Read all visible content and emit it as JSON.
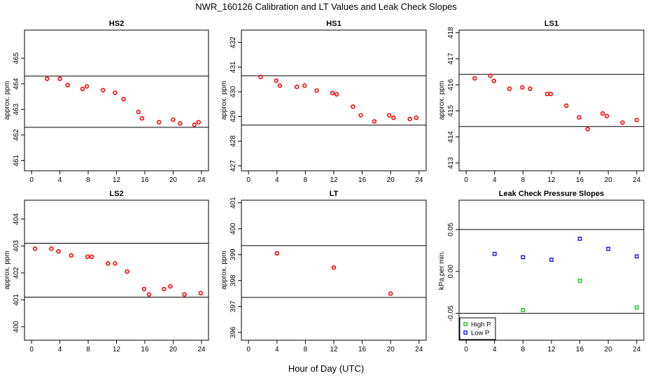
{
  "figure": {
    "title": "NWR_160126  Calibration and LT Values and Leak Check Slopes",
    "xlabel": "Hour of Day (UTC)"
  },
  "chart_data": [
    {
      "type": "scatter",
      "title": "HS2",
      "ylabel": "approx. ppm",
      "xlim": [
        -1,
        25
      ],
      "ylim": [
        460.6,
        466.1
      ],
      "xticks": [
        0,
        4,
        8,
        12,
        16,
        20,
        24
      ],
      "xtick_labels": [
        "0",
        "4",
        "8",
        "12",
        "16",
        "20",
        "24"
      ],
      "yticks": [
        461,
        462,
        463,
        464,
        465
      ],
      "ytick_labels": [
        "461",
        "462",
        "463",
        "464",
        "465"
      ],
      "hlines": [
        464.3,
        462.3
      ],
      "series": [
        {
          "name": "HS2",
          "color": "#ff0000",
          "x": [
            2.2,
            4.0,
            5.1,
            7.2,
            7.8,
            10.1,
            11.8,
            13.0,
            15.1,
            15.6,
            18.0,
            20.0,
            21.0,
            23.0,
            23.6
          ],
          "y": [
            464.2,
            464.2,
            463.95,
            463.8,
            463.9,
            463.75,
            463.65,
            463.4,
            462.9,
            462.65,
            462.5,
            462.6,
            462.45,
            462.4,
            462.5
          ]
        }
      ]
    },
    {
      "type": "scatter",
      "title": "HS1",
      "ylabel": "approx. ppm",
      "xlim": [
        -1,
        25
      ],
      "ylim": [
        426.8,
        432.5
      ],
      "xticks": [
        0,
        4,
        8,
        12,
        16,
        20,
        24
      ],
      "xtick_labels": [
        "0",
        "4",
        "8",
        "12",
        "16",
        "20",
        "24"
      ],
      "yticks": [
        427,
        428,
        429,
        430,
        431,
        432
      ],
      "ytick_labels": [
        "427",
        "428",
        "429",
        "430",
        "431",
        "432"
      ],
      "hlines": [
        430.65,
        428.65
      ],
      "series": [
        {
          "name": "HS1",
          "color": "#ff0000",
          "x": [
            1.7,
            3.9,
            4.4,
            6.8,
            7.9,
            9.6,
            11.8,
            12.4,
            14.7,
            15.8,
            17.7,
            19.8,
            20.4,
            22.7,
            23.6
          ],
          "y": [
            430.6,
            430.45,
            430.25,
            430.2,
            430.25,
            430.05,
            429.95,
            429.9,
            429.4,
            429.05,
            428.8,
            429.05,
            428.95,
            428.9,
            428.95
          ]
        }
      ]
    },
    {
      "type": "scatter",
      "title": "LS1",
      "ylabel": "approx. ppm",
      "xlim": [
        -1,
        25
      ],
      "ylim": [
        412.7,
        418.1
      ],
      "xticks": [
        0,
        4,
        8,
        12,
        16,
        20,
        24
      ],
      "xtick_labels": [
        "0",
        "4",
        "8",
        "12",
        "16",
        "20",
        "24"
      ],
      "yticks": [
        413,
        414,
        415,
        416,
        417,
        418
      ],
      "ytick_labels": [
        "413",
        "414",
        "415",
        "416",
        "417",
        "418"
      ],
      "hlines": [
        416.4,
        414.4
      ],
      "series": [
        {
          "name": "LS1",
          "color": "#ff0000",
          "x": [
            1.2,
            3.4,
            3.9,
            6.1,
            7.9,
            9.0,
            11.4,
            11.9,
            14.1,
            15.9,
            17.1,
            19.2,
            19.8,
            22.0,
            24.0
          ],
          "y": [
            416.25,
            416.35,
            416.15,
            415.85,
            415.9,
            415.85,
            415.65,
            415.65,
            415.2,
            414.75,
            414.3,
            414.9,
            414.8,
            414.55,
            414.65
          ]
        }
      ]
    },
    {
      "type": "scatter",
      "title": "LS2",
      "ylabel": "approx. ppm",
      "xlim": [
        -1,
        25
      ],
      "ylim": [
        399.5,
        404.7
      ],
      "xticks": [
        0,
        4,
        8,
        12,
        16,
        20,
        24
      ],
      "xtick_labels": [
        "0",
        "4",
        "8",
        "12",
        "16",
        "20",
        "24"
      ],
      "yticks": [
        400,
        401,
        402,
        403,
        404
      ],
      "ytick_labels": [
        "400",
        "401",
        "402",
        "403",
        "404"
      ],
      "hlines": [
        403.1,
        401.1
      ],
      "series": [
        {
          "name": "LS2",
          "color": "#ff0000",
          "x": [
            0.5,
            2.8,
            3.8,
            5.6,
            7.9,
            8.5,
            10.8,
            11.8,
            13.5,
            15.9,
            16.6,
            18.7,
            19.6,
            21.6,
            23.9
          ],
          "y": [
            402.9,
            402.9,
            402.8,
            402.65,
            402.6,
            402.6,
            402.35,
            402.35,
            402.05,
            401.4,
            401.2,
            401.4,
            401.5,
            401.2,
            401.25
          ]
        }
      ]
    },
    {
      "type": "scatter",
      "title": "LT",
      "ylabel": "approx. ppm",
      "xlim": [
        -1,
        25
      ],
      "ylim": [
        395.7,
        401.1
      ],
      "xticks": [
        0,
        4,
        8,
        12,
        16,
        20,
        24
      ],
      "xtick_labels": [
        "0",
        "4",
        "8",
        "12",
        "16",
        "20",
        "24"
      ],
      "yticks": [
        396,
        397,
        398,
        399,
        400,
        401
      ],
      "ytick_labels": [
        "396",
        "397",
        "398",
        "399",
        "400",
        "401"
      ],
      "hlines": [
        399.35,
        397.35
      ],
      "series": [
        {
          "name": "LT",
          "color": "#ff0000",
          "x": [
            4.0,
            12.0,
            20.0
          ],
          "y": [
            399.05,
            398.5,
            397.5
          ]
        }
      ]
    },
    {
      "type": "scatter",
      "title": "Leak Check Pressure Slopes",
      "ylabel": "kPa per min.",
      "xlim": [
        -1,
        25
      ],
      "ylim": [
        -0.082,
        0.085
      ],
      "xticks": [
        0,
        4,
        8,
        12,
        16,
        20,
        24
      ],
      "xtick_labels": [
        "0",
        "4",
        "8",
        "12",
        "16",
        "20",
        "24"
      ],
      "yticks": [
        -0.05,
        0.0,
        0.05
      ],
      "ytick_labels": [
        "-0.05",
        "0.00",
        "0.05"
      ],
      "hlines": [
        0.05,
        -0.05
      ],
      "legend": {
        "position": "bottom-left",
        "entries": [
          "High P",
          "Low P"
        ]
      },
      "series": [
        {
          "name": "High P",
          "color": "#00cc00",
          "x": [
            8.0,
            16.0,
            24.0
          ],
          "y": [
            -0.046,
            -0.011,
            -0.043
          ]
        },
        {
          "name": "Low P",
          "color": "#0000ff",
          "x": [
            4.0,
            8.0,
            12.0,
            16.0,
            20.0,
            24.0
          ],
          "y": [
            0.021,
            0.017,
            0.014,
            0.039,
            0.027,
            0.018
          ]
        }
      ]
    }
  ]
}
